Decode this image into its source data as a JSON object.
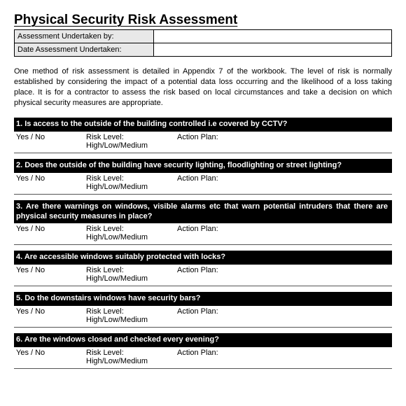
{
  "title": "Physical Security Risk Assessment",
  "meta": {
    "undertaken_by_label": "Assessment Undertaken by:",
    "undertaken_by_value": "",
    "date_label": "Date Assessment Undertaken:",
    "date_value": ""
  },
  "intro": "One method of risk assessment is detailed in Appendix 7 of the workbook.  The level of risk is normally established by considering the impact of a potential data loss occurring and the likelihood of a loss taking place. It is for a contractor to assess the risk based on local circumstances and take a decision on which physical security measures are appropriate.",
  "labels": {
    "yesno": "Yes / No",
    "risk": "Risk Level: High/Low/Medium",
    "action": "Action Plan:"
  },
  "questions": [
    {
      "num": "1.",
      "text": "Is access to the outside of the building  controlled i.e covered by CCTV?"
    },
    {
      "num": "2.",
      "text": "Does the outside of the building  have security lighting, floodlighting  or street lighting?"
    },
    {
      "num": "3.",
      "text": "Are there warnings on windows, visible alarms etc that warn potential intruders that there are physical security measures in place?"
    },
    {
      "num": "4.",
      "text": "Are accessible windows suitably protected with locks?"
    },
    {
      "num": "5.",
      "text": "Do the downstairs windows have security bars?"
    },
    {
      "num": "6.",
      "text": "Are the windows closed and checked every evening?"
    }
  ],
  "colors": {
    "header_bg": "#000000",
    "header_fg": "#ffffff",
    "meta_bg": "#e8e8e8",
    "border": "#000000",
    "divider": "#555555",
    "page_bg": "#ffffff",
    "text": "#000000"
  },
  "typography": {
    "title_size_pt": 19,
    "body_size_pt": 11,
    "font_family": "Arial"
  }
}
